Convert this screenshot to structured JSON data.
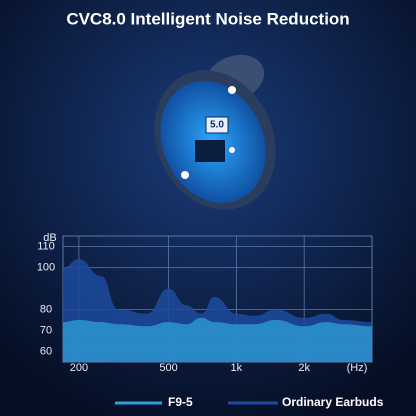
{
  "chart_data": {
    "type": "area",
    "title": "CVC8.0 Intelligent Noise Reduction",
    "y_label": "dB",
    "x_label": "(Hz)",
    "x": [
      170,
      200,
      250,
      300,
      400,
      500,
      600,
      700,
      800,
      1000,
      1200,
      1500,
      2000,
      2500,
      3000,
      4000
    ],
    "series": [
      {
        "name": "Ordinary Earbuds",
        "color": "#1d4a9e",
        "values": [
          100,
          104,
          96,
          80,
          78,
          90,
          82,
          78,
          86,
          78,
          77,
          80,
          76,
          78,
          75,
          74
        ]
      },
      {
        "name": "F9-5",
        "color": "#2fa0d8",
        "values": [
          74,
          75,
          74,
          73,
          72,
          74,
          73,
          76,
          74,
          73,
          73,
          75,
          72,
          74,
          73,
          72
        ]
      }
    ],
    "xscale": "log",
    "xlim": [
      170,
      4000
    ],
    "xticks": [
      200,
      500,
      {
        "value": 1000,
        "label": "1k"
      },
      {
        "value": 2000,
        "label": "2k"
      }
    ],
    "ylim": [
      55,
      115
    ],
    "yticks": [
      60,
      70,
      80,
      100,
      110
    ],
    "grid": true
  },
  "illustration": {
    "chip_label": "5.0"
  }
}
